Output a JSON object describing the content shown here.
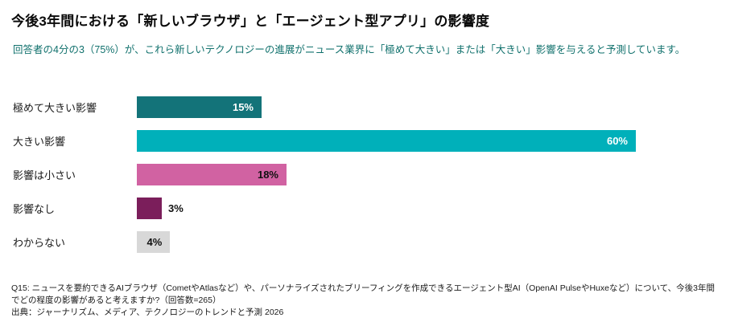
{
  "header": {
    "title": "今後3年間における「新しいブラウザ」と「エージェント型アプリ」の影響度",
    "subtitle": "回答者の4分の3（75%）が、これら新しいテクノロジーの進展がニュース業界に「極めて大きい」または「大きい」影響を与えると予測しています。"
  },
  "chart_data": {
    "type": "bar",
    "orientation": "horizontal",
    "title": "今後3年間における「新しいブラウザ」と「エージェント型アプリ」の影響度",
    "categories": [
      "極めて大きい影響",
      "大きい影響",
      "影響は小さい",
      "影響なし",
      "わからない"
    ],
    "values": [
      15,
      60,
      18,
      3,
      4
    ],
    "value_labels": [
      "15%",
      "60%",
      "18%",
      "3%",
      "4%"
    ],
    "bar_colors": [
      "#137379",
      "#00b0ba",
      "#d162a2",
      "#7b1e5b",
      "#d8d8d8"
    ],
    "label_colors": [
      "#ffffff",
      "#ffffff",
      "#111111",
      "#111111",
      "#111111"
    ],
    "label_inside": [
      true,
      true,
      true,
      false,
      true
    ],
    "xlim": [
      0,
      60
    ],
    "grid": false,
    "legend": "none",
    "xlabel": "",
    "ylabel": ""
  },
  "footer": {
    "q_line": "Q15: ニュースを要約できるAIブラウザ（CometやAtlasなど）や、パーソナライズされたブリーフィングを作成できるエージェント型AI（OpenAI PulseやHuxeなど）について、今後3年間でどの程度の影響があると考えますか?（回答数=265）",
    "source_line": "出典：ジャーナリズム、メディア、テクノロジーのトレンドと予測 2026"
  }
}
